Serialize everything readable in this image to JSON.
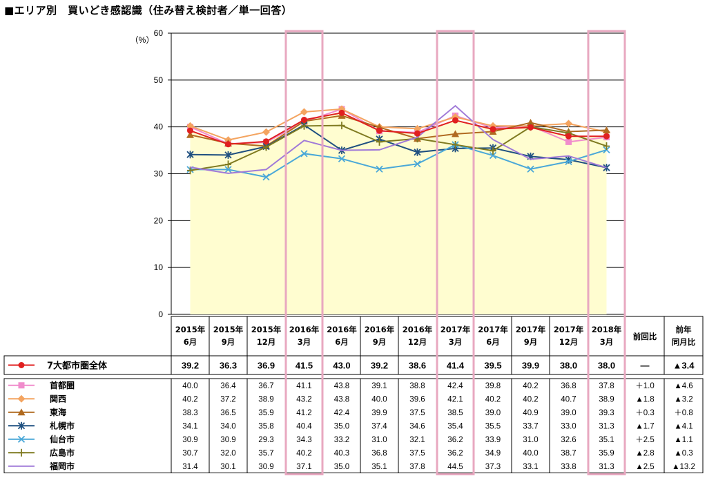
{
  "title": "■エリア別　買いどき感認識（住み替え検討者／単一回答）",
  "chart_data": {
    "type": "line",
    "ylabel": "（%）",
    "ylim": [
      0,
      60
    ],
    "yticks": [
      "0",
      "10",
      "20",
      "30",
      "40",
      "50",
      "60"
    ],
    "categories": [
      [
        "2015年",
        "6月"
      ],
      [
        "2015年",
        "9月"
      ],
      [
        "2015年",
        "12月"
      ],
      [
        "2016年",
        "3月"
      ],
      [
        "2016年",
        "6月"
      ],
      [
        "2016年",
        "9月"
      ],
      [
        "2016年",
        "12月"
      ],
      [
        "2017年",
        "3月"
      ],
      [
        "2017年",
        "6月"
      ],
      [
        "2017年",
        "9月"
      ],
      [
        "2017年",
        "12月"
      ],
      [
        "2018年",
        "3月"
      ]
    ],
    "highlight_indices": [
      3,
      7,
      11
    ],
    "comparison_headers": [
      [
        "前回比"
      ],
      [
        "前年",
        "同月比"
      ]
    ],
    "series": [
      {
        "name": "7大都市圏全体",
        "color": "#e02020",
        "marker": "circle",
        "area": true,
        "values": [
          39.2,
          36.3,
          36.9,
          41.5,
          43.0,
          39.2,
          38.6,
          41.4,
          39.5,
          39.9,
          38.0,
          38.0
        ],
        "diff_prev": "―",
        "diff_year": "▲3.4"
      },
      {
        "name": "首都圏",
        "color": "#f08ccc",
        "marker": "square",
        "values": [
          40.0,
          36.4,
          36.7,
          41.1,
          43.8,
          39.1,
          38.8,
          42.4,
          39.8,
          40.2,
          36.8,
          37.8
        ],
        "diff_prev": "＋1.0",
        "diff_year": "▲4.6"
      },
      {
        "name": "関西",
        "color": "#f4a460",
        "marker": "diamond",
        "values": [
          40.2,
          37.2,
          38.9,
          43.2,
          43.8,
          40.0,
          39.6,
          42.1,
          40.2,
          40.2,
          40.7,
          38.9
        ],
        "diff_prev": "▲1.8",
        "diff_year": "▲3.2"
      },
      {
        "name": "東海",
        "color": "#b06a20",
        "marker": "triangle",
        "values": [
          38.3,
          36.5,
          35.9,
          41.2,
          42.4,
          39.9,
          37.5,
          38.5,
          39.0,
          40.9,
          39.0,
          39.3
        ],
        "diff_prev": "＋0.3",
        "diff_year": "＋0.8"
      },
      {
        "name": "札幌市",
        "color": "#1f5080",
        "marker": "asterisk",
        "values": [
          34.1,
          34.0,
          35.8,
          40.4,
          35.0,
          37.4,
          34.6,
          35.4,
          35.5,
          33.7,
          33.0,
          31.3
        ],
        "diff_prev": "▲1.7",
        "diff_year": "▲4.1"
      },
      {
        "name": "仙台市",
        "color": "#4aa8d8",
        "marker": "x",
        "values": [
          30.9,
          30.9,
          29.3,
          34.3,
          33.2,
          31.0,
          32.1,
          36.2,
          33.9,
          31.0,
          32.6,
          35.1
        ],
        "diff_prev": "＋2.5",
        "diff_year": "▲1.1"
      },
      {
        "name": "広島市",
        "color": "#7f7a20",
        "marker": "plus",
        "values": [
          30.7,
          32.0,
          35.7,
          40.2,
          40.3,
          36.8,
          37.5,
          36.2,
          34.9,
          40.0,
          38.7,
          35.9
        ],
        "diff_prev": "▲2.8",
        "diff_year": "▲0.3"
      },
      {
        "name": "福岡市",
        "color": "#a07ad8",
        "marker": "none",
        "values": [
          31.4,
          30.1,
          30.9,
          37.1,
          35.0,
          35.1,
          37.8,
          44.5,
          37.3,
          33.1,
          33.8,
          31.3
        ],
        "diff_prev": "▲2.5",
        "diff_year": "▲13.2"
      }
    ]
  }
}
